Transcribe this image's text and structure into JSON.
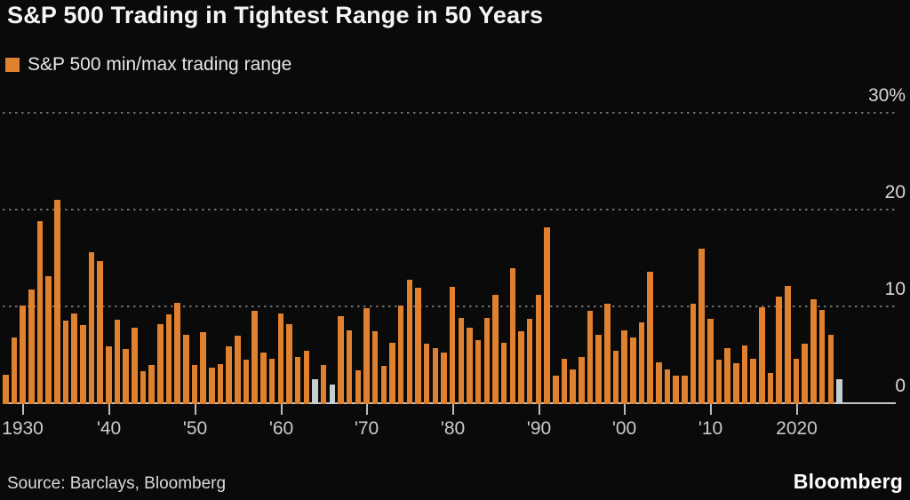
{
  "header": {
    "title": "S&P 500 Trading in Tightest Range in 50 Years"
  },
  "legend": {
    "label": "S&P 500 min/max trading range",
    "swatch_color": "#e0812f"
  },
  "footer": {
    "source": "Source: Barclays, Bloomberg",
    "logo": "Bloomberg"
  },
  "colors": {
    "background": "#0a0a0a",
    "bar": "#e0812f",
    "bar_highlight": "#c4ced1",
    "gridline": "#7f7f7f",
    "baseline": "#bec6c9",
    "title_text": "#f5f5f5",
    "axis_text": "#c9cbcb"
  },
  "chart_data": {
    "type": "bar",
    "title": "S&P 500 Trading in Tightest Range in 50 Years",
    "legend_entries": [
      "S&P 500 min/max trading range"
    ],
    "ylabel": "",
    "xlabel": "",
    "unit": "%",
    "ylim": [
      0,
      30
    ],
    "grid": "horizontal-dotted",
    "legend_position": "top-left",
    "y_axis_side": "right",
    "y_ticks": [
      0,
      10,
      20,
      30
    ],
    "y_tick_labels": [
      "0",
      "10",
      "20",
      "30%"
    ],
    "x_ticks": [
      {
        "year": 1930,
        "label": "1930"
      },
      {
        "year": 1940,
        "label": "'40"
      },
      {
        "year": 1950,
        "label": "'50"
      },
      {
        "year": 1960,
        "label": "'60"
      },
      {
        "year": 1970,
        "label": "'70"
      },
      {
        "year": 1980,
        "label": "'80"
      },
      {
        "year": 1990,
        "label": "'90"
      },
      {
        "year": 2000,
        "label": "'00"
      },
      {
        "year": 2010,
        "label": "'10"
      },
      {
        "year": 2020,
        "label": "2020"
      }
    ],
    "categories": [
      1928,
      1929,
      1930,
      1931,
      1932,
      1933,
      1934,
      1935,
      1936,
      1937,
      1938,
      1939,
      1940,
      1941,
      1942,
      1943,
      1944,
      1945,
      1946,
      1947,
      1948,
      1949,
      1950,
      1951,
      1952,
      1953,
      1954,
      1955,
      1956,
      1957,
      1958,
      1959,
      1960,
      1961,
      1962,
      1963,
      1964,
      1965,
      1966,
      1967,
      1968,
      1969,
      1970,
      1971,
      1972,
      1973,
      1974,
      1975,
      1976,
      1977,
      1978,
      1979,
      1980,
      1981,
      1982,
      1983,
      1984,
      1985,
      1986,
      1987,
      1988,
      1989,
      1990,
      1991,
      1992,
      1993,
      1994,
      1995,
      1996,
      1997,
      1998,
      1999,
      2000,
      2001,
      2002,
      2003,
      2004,
      2005,
      2006,
      2007,
      2008,
      2009,
      2010,
      2011,
      2012,
      2013,
      2014,
      2015,
      2016,
      2017,
      2018,
      2019,
      2020,
      2021,
      2022,
      2023,
      2024,
      2025
    ],
    "values": [
      3.0,
      6.9,
      10.2,
      11.8,
      18.9,
      13.2,
      21.1,
      8.6,
      9.4,
      8.2,
      15.7,
      14.8,
      6.0,
      8.7,
      5.7,
      7.9,
      3.4,
      4.0,
      8.3,
      9.3,
      10.5,
      7.2,
      4.0,
      7.4,
      3.8,
      4.1,
      6.0,
      7.1,
      4.6,
      9.6,
      5.3,
      4.7,
      9.4,
      8.3,
      4.9,
      5.5,
      2.6,
      4.0,
      2.0,
      9.1,
      7.6,
      3.5,
      9.9,
      7.5,
      3.9,
      6.3,
      10.2,
      12.8,
      12.0,
      6.2,
      5.8,
      5.3,
      12.1,
      8.9,
      7.9,
      6.6,
      8.9,
      11.3,
      6.3,
      14.0,
      7.5,
      8.8,
      11.3,
      18.3,
      2.9,
      4.7,
      3.6,
      4.9,
      9.6,
      7.2,
      10.4,
      5.5,
      7.6,
      6.9,
      8.4,
      13.7,
      4.3,
      3.6,
      2.9,
      2.9,
      10.4,
      16.1,
      8.8,
      4.6,
      5.8,
      4.2,
      6.1,
      4.7,
      10.0,
      3.2,
      11.1,
      12.2,
      4.7,
      6.2,
      10.8,
      9.7,
      7.2,
      2.6
    ],
    "highlighted_years": [
      1964,
      1966,
      2025
    ],
    "highlight_style": "gray bars"
  }
}
